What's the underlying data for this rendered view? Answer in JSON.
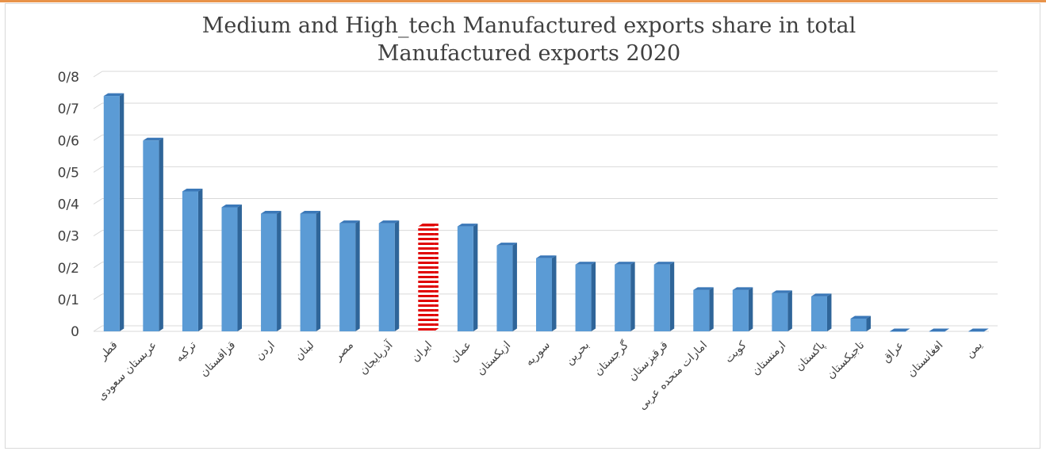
{
  "chart_data": {
    "type": "bar",
    "title_lines": [
      "Medium and High_tech  Manufactured  exports share in total",
      "Manufactured  exports 2020"
    ],
    "categories": [
      "قطر",
      "عربستان سعودی",
      "ترکیه",
      "قزاقستان",
      "اردن",
      "لبنان",
      "مصر",
      "آذربایجان",
      "ایران",
      "عمان",
      "ازبکستان",
      "سوریه",
      "بحرین",
      "گرجستان",
      "قرقیزستان",
      "امارات متحده عربی",
      "کویت",
      "ارمنستان",
      "پاکستان",
      "تاجیکستان",
      "عراق",
      "افغانستان",
      "یمن"
    ],
    "values": [
      0.74,
      0.6,
      0.44,
      0.39,
      0.37,
      0.37,
      0.34,
      0.34,
      0.33,
      0.33,
      0.27,
      0.23,
      0.21,
      0.21,
      0.21,
      0.13,
      0.13,
      0.12,
      0.11,
      0.04,
      0.0,
      0.0,
      0.0
    ],
    "highlight_category": "ایران",
    "ylim": [
      0,
      0.8
    ],
    "yticks": [
      "0",
      "0/1",
      "0/2",
      "0/3",
      "0/4",
      "0/5",
      "0/6",
      "0/7",
      "0/8"
    ],
    "grid": true,
    "xlabel": "",
    "ylabel": "",
    "colors": {
      "bar_front": "#5b9bd5",
      "bar_side": "#2f6599",
      "bar_top": "#3b78b8",
      "highlight_red": "#e00000",
      "highlight_white": "#ffffff",
      "grid": "#d9d9d9",
      "text": "#404040",
      "accent_bar": "#e8934a"
    }
  }
}
